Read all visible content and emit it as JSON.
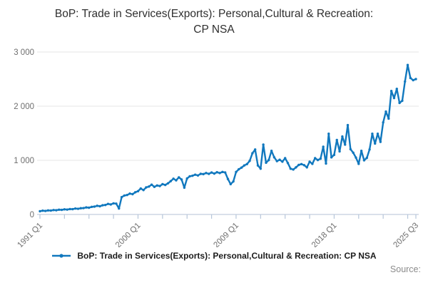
{
  "title": "BoP: Trade in Services(Exports): Personal,Cultural & Recreation: CP NSA",
  "legend": {
    "label": "BoP: Trade in Services(Exports): Personal,Cultural & Recreation: CP NSA"
  },
  "source_label": "Source:",
  "colors": {
    "line": "#1178BE",
    "grid": "#e6e6e6",
    "axis": "#c3cedd",
    "tick": "#b7c6da",
    "text_muted": "#6e6e6e",
    "title_text": "#2f2f2f"
  },
  "chart_data": {
    "type": "line",
    "title": "BoP: Trade in Services(Exports): Personal,Cultural & Recreation: CP NSA",
    "xlabel": "",
    "ylabel": "",
    "x_start": "1991 Q1",
    "x_end": "2025 Q3",
    "x_frequency": "quarterly",
    "x_tick_labels": [
      "1991 Q1",
      "2000 Q1",
      "2009 Q1",
      "2018 Q1",
      "2025 Q3"
    ],
    "x_tick_label_indices": [
      0,
      36,
      72,
      108,
      138
    ],
    "minor_tick_every": 9,
    "y_ticks": [
      0,
      1000,
      2000,
      3000
    ],
    "y_tick_labels": [
      "0",
      "1 000",
      "2 000",
      "3 000"
    ],
    "ylim": [
      0,
      3000
    ],
    "grid": "horizontal",
    "legend_position": "bottom",
    "series": [
      {
        "name": "BoP: Trade in Services(Exports): Personal,Cultural & Recreation: CP NSA",
        "values": [
          60,
          70,
          65,
          75,
          72,
          82,
          78,
          88,
          85,
          95,
          90,
          100,
          98,
          110,
          105,
          115,
          118,
          130,
          125,
          140,
          145,
          160,
          152,
          170,
          175,
          195,
          185,
          205,
          200,
          110,
          320,
          350,
          360,
          385,
          375,
          410,
          430,
          480,
          450,
          500,
          515,
          550,
          510,
          535,
          525,
          560,
          545,
          575,
          615,
          660,
          630,
          685,
          645,
          495,
          665,
          705,
          715,
          735,
          720,
          750,
          745,
          765,
          750,
          775,
          755,
          780,
          765,
          785,
          775,
          655,
          560,
          610,
          785,
          835,
          865,
          905,
          930,
          990,
          1130,
          1200,
          905,
          845,
          1290,
          955,
          1005,
          1175,
          1055,
          985,
          1010,
          975,
          1040,
          950,
          845,
          830,
          870,
          915,
          930,
          910,
          870,
          975,
          935,
          1040,
          1005,
          1030,
          1250,
          940,
          1490,
          1055,
          1100,
          1375,
          1165,
          1440,
          1290,
          1650,
          1205,
          1140,
          1050,
          935,
          1175,
          1000,
          1045,
          1200,
          1490,
          1310,
          1490,
          1340,
          1700,
          1900,
          1770,
          2280,
          2150,
          2320,
          2060,
          2100,
          2455,
          2760,
          2520,
          2480,
          2500
        ]
      }
    ]
  }
}
